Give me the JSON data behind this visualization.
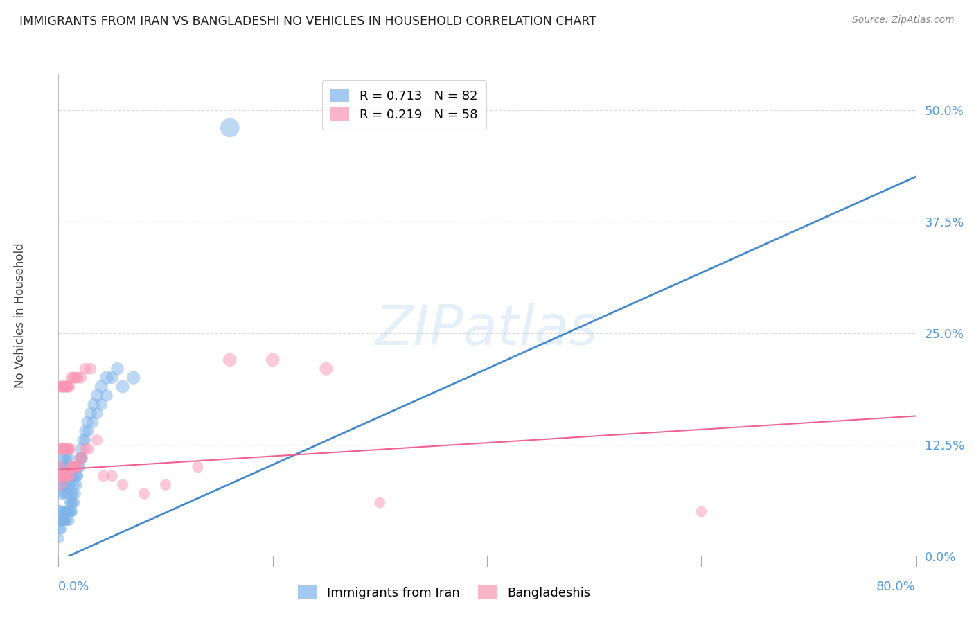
{
  "title": "IMMIGRANTS FROM IRAN VS BANGLADESHI NO VEHICLES IN HOUSEHOLD CORRELATION CHART",
  "source": "Source: ZipAtlas.com",
  "ylabel": "No Vehicles in Household",
  "ytick_values": [
    0.0,
    0.125,
    0.25,
    0.375,
    0.5
  ],
  "xmin": 0.0,
  "xmax": 0.8,
  "ymin": 0.0,
  "ymax": 0.54,
  "iran_color": "#7EB3E8",
  "bang_color": "#F895B4",
  "iran_line_color": "#4488CC",
  "bang_line_color": "#F06090",
  "iran_slope": 0.5375,
  "iran_intercept": -0.005,
  "bang_slope": 0.075,
  "bang_intercept": 0.097,
  "legend_entries": [
    {
      "label": "R = 0.713   N = 82",
      "color": "#7EB3E8"
    },
    {
      "label": "R = 0.219   N = 58",
      "color": "#F895B4"
    }
  ],
  "axis_tick_color": "#5599DD",
  "ylabel_color": "#444444",
  "grid_color": "#DDDDDD",
  "background_color": "#FFFFFF",
  "watermark": "ZIPatlas",
  "watermark_color": "#AACCEE",
  "iran_x": [
    0.001,
    0.002,
    0.002,
    0.003,
    0.003,
    0.003,
    0.004,
    0.004,
    0.004,
    0.005,
    0.005,
    0.005,
    0.006,
    0.006,
    0.006,
    0.007,
    0.007,
    0.007,
    0.008,
    0.008,
    0.008,
    0.009,
    0.009,
    0.009,
    0.01,
    0.01,
    0.01,
    0.011,
    0.011,
    0.012,
    0.012,
    0.013,
    0.013,
    0.014,
    0.014,
    0.015,
    0.015,
    0.016,
    0.017,
    0.018,
    0.019,
    0.02,
    0.021,
    0.022,
    0.023,
    0.025,
    0.027,
    0.03,
    0.033,
    0.036,
    0.04,
    0.045,
    0.001,
    0.002,
    0.003,
    0.004,
    0.005,
    0.006,
    0.007,
    0.008,
    0.009,
    0.01,
    0.011,
    0.012,
    0.013,
    0.014,
    0.015,
    0.016,
    0.018,
    0.02,
    0.022,
    0.025,
    0.028,
    0.032,
    0.036,
    0.04,
    0.045,
    0.05,
    0.055,
    0.16,
    0.06,
    0.07
  ],
  "iran_y": [
    0.05,
    0.04,
    0.08,
    0.05,
    0.07,
    0.1,
    0.04,
    0.08,
    0.11,
    0.05,
    0.07,
    0.1,
    0.04,
    0.08,
    0.11,
    0.05,
    0.07,
    0.1,
    0.04,
    0.08,
    0.11,
    0.05,
    0.07,
    0.1,
    0.04,
    0.08,
    0.11,
    0.05,
    0.08,
    0.05,
    0.09,
    0.05,
    0.09,
    0.06,
    0.1,
    0.06,
    0.1,
    0.07,
    0.08,
    0.09,
    0.1,
    0.11,
    0.12,
    0.11,
    0.13,
    0.14,
    0.15,
    0.16,
    0.17,
    0.18,
    0.19,
    0.2,
    0.02,
    0.03,
    0.03,
    0.04,
    0.04,
    0.04,
    0.05,
    0.05,
    0.05,
    0.06,
    0.06,
    0.06,
    0.07,
    0.07,
    0.08,
    0.09,
    0.09,
    0.1,
    0.11,
    0.13,
    0.14,
    0.15,
    0.16,
    0.17,
    0.18,
    0.2,
    0.21,
    0.48,
    0.19,
    0.2
  ],
  "iran_sizes": [
    40,
    35,
    35,
    30,
    30,
    30,
    28,
    28,
    28,
    28,
    28,
    28,
    26,
    26,
    26,
    26,
    26,
    26,
    26,
    26,
    26,
    26,
    26,
    26,
    26,
    26,
    26,
    26,
    26,
    26,
    26,
    26,
    26,
    26,
    26,
    26,
    26,
    26,
    28,
    28,
    28,
    30,
    30,
    30,
    30,
    32,
    32,
    34,
    34,
    36,
    38,
    40,
    20,
    22,
    22,
    22,
    22,
    22,
    22,
    22,
    22,
    22,
    22,
    22,
    22,
    22,
    22,
    24,
    24,
    26,
    26,
    28,
    28,
    30,
    30,
    32,
    32,
    34,
    36,
    80,
    38,
    40
  ],
  "bang_x": [
    0.001,
    0.002,
    0.002,
    0.003,
    0.003,
    0.004,
    0.004,
    0.005,
    0.005,
    0.006,
    0.006,
    0.007,
    0.007,
    0.008,
    0.008,
    0.009,
    0.009,
    0.01,
    0.01,
    0.011,
    0.012,
    0.013,
    0.014,
    0.015,
    0.016,
    0.018,
    0.02,
    0.022,
    0.025,
    0.028,
    0.002,
    0.003,
    0.004,
    0.005,
    0.006,
    0.007,
    0.008,
    0.009,
    0.01,
    0.012,
    0.014,
    0.016,
    0.018,
    0.021,
    0.025,
    0.03,
    0.036,
    0.042,
    0.05,
    0.06,
    0.08,
    0.1,
    0.13,
    0.16,
    0.2,
    0.25,
    0.3,
    0.6
  ],
  "bang_y": [
    0.1,
    0.12,
    0.08,
    0.12,
    0.09,
    0.12,
    0.09,
    0.12,
    0.09,
    0.12,
    0.09,
    0.12,
    0.09,
    0.12,
    0.09,
    0.12,
    0.09,
    0.12,
    0.09,
    0.12,
    0.1,
    0.1,
    0.1,
    0.1,
    0.1,
    0.1,
    0.11,
    0.11,
    0.12,
    0.12,
    0.19,
    0.19,
    0.19,
    0.19,
    0.19,
    0.19,
    0.19,
    0.19,
    0.19,
    0.2,
    0.2,
    0.2,
    0.2,
    0.2,
    0.21,
    0.21,
    0.13,
    0.09,
    0.09,
    0.08,
    0.07,
    0.08,
    0.1,
    0.22,
    0.22,
    0.21,
    0.06,
    0.05
  ],
  "bang_sizes": [
    35,
    30,
    30,
    30,
    30,
    28,
    28,
    28,
    28,
    28,
    28,
    28,
    28,
    28,
    28,
    28,
    28,
    28,
    28,
    28,
    28,
    28,
    28,
    28,
    28,
    28,
    28,
    28,
    28,
    28,
    30,
    30,
    30,
    30,
    30,
    30,
    30,
    30,
    30,
    30,
    30,
    30,
    30,
    30,
    30,
    30,
    28,
    28,
    28,
    28,
    28,
    28,
    28,
    40,
    40,
    38,
    26,
    26
  ]
}
